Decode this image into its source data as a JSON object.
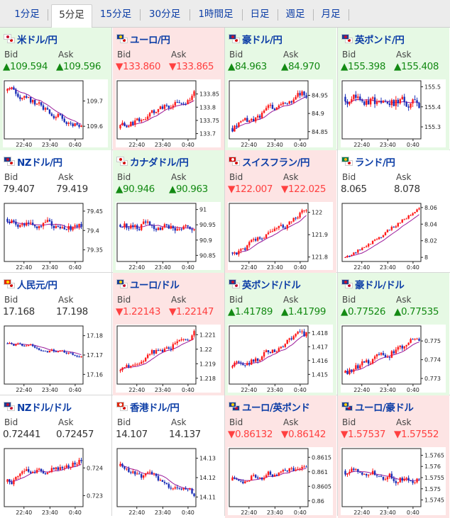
{
  "tabs": [
    {
      "label": "1分足",
      "active": false
    },
    {
      "label": "5分足",
      "active": true
    },
    {
      "label": "15分足",
      "active": false
    },
    {
      "label": "30分足",
      "active": false
    },
    {
      "label": "1時間足",
      "active": false
    },
    {
      "label": "日足",
      "active": false
    },
    {
      "label": "週足",
      "active": false
    },
    {
      "label": "月足",
      "active": false
    }
  ],
  "labels": {
    "bid": "Bid",
    "ask": "Ask"
  },
  "colors": {
    "up_bg": "#e6f9e4",
    "down_bg": "#fde4e4",
    "up_text": "#138a13",
    "down_text": "#ff4040",
    "candle_up": "#ff1a1a",
    "candle_down": "#1a2fb8",
    "ma_line": "#9a1a9a",
    "title": "#0d3ea6"
  },
  "pairs": [
    {
      "name": "米ドル/円",
      "trend": "up",
      "bid": "▲109.594",
      "ask": "▲109.596",
      "flags": [
        "us",
        "jp"
      ],
      "chart_data": {
        "type": "candlestick",
        "x_ticks": [
          "22:40",
          "23:40",
          "0:40"
        ],
        "y_ticks": [
          "109.7",
          "109.6"
        ],
        "ylim": [
          109.55,
          109.78
        ],
        "open": 109.74,
        "close": 109.59,
        "volatility": 0.012,
        "seed": 11
      }
    },
    {
      "name": "ユーロ/円",
      "trend": "down",
      "bid": "▼133.860",
      "ask": "▼133.865",
      "flags": [
        "eu",
        "jp"
      ],
      "chart_data": {
        "type": "candlestick",
        "x_ticks": [
          "22:40",
          "23:40",
          "0:40"
        ],
        "y_ticks": [
          "133.85",
          "133.8",
          "133.75",
          "133.7"
        ],
        "ylim": [
          133.68,
          133.9
        ],
        "open": 133.72,
        "close": 133.86,
        "volatility": 0.012,
        "seed": 12
      }
    },
    {
      "name": "豪ドル/円",
      "trend": "up",
      "bid": "▲84.963",
      "ask": "▲84.970",
      "flags": [
        "au",
        "jp"
      ],
      "chart_data": {
        "type": "candlestick",
        "x_ticks": [
          "22:40",
          "23:40",
          "0:40"
        ],
        "y_ticks": [
          "84.95",
          "84.9",
          "84.85"
        ],
        "ylim": [
          84.83,
          84.99
        ],
        "open": 84.86,
        "close": 84.96,
        "volatility": 0.01,
        "seed": 13
      }
    },
    {
      "name": "英ポンド/円",
      "trend": "up",
      "bid": "▲155.398",
      "ask": "▲155.408",
      "flags": [
        "gb",
        "jp"
      ],
      "chart_data": {
        "type": "candlestick",
        "x_ticks": [
          "22:40",
          "23:40",
          "0:40"
        ],
        "y_ticks": [
          "155.5",
          "155.4",
          "155.3"
        ],
        "ylim": [
          155.24,
          155.53
        ],
        "open": 155.45,
        "close": 155.4,
        "volatility": 0.025,
        "seed": 14
      }
    },
    {
      "name": "NZドル/円",
      "trend": "flat",
      "bid": "79.407",
      "ask": "79.419",
      "flags": [
        "nz",
        "jp"
      ],
      "chart_data": {
        "type": "candlestick",
        "x_ticks": [
          "22:40",
          "23:40",
          "0:40"
        ],
        "y_ticks": [
          "79.45",
          "79.4",
          "79.35"
        ],
        "ylim": [
          79.32,
          79.47
        ],
        "open": 79.43,
        "close": 79.41,
        "volatility": 0.01,
        "seed": 15
      }
    },
    {
      "name": "カナダドル/円",
      "trend": "up",
      "bid": "▲90.946",
      "ask": "▲90.963",
      "flags": [
        "ca",
        "jp"
      ],
      "chart_data": {
        "type": "candlestick",
        "x_ticks": [
          "22:40",
          "23:40",
          "0:40"
        ],
        "y_ticks": [
          "91",
          "90.95",
          "90.9",
          "90.85"
        ],
        "ylim": [
          90.83,
          91.02
        ],
        "open": 90.95,
        "close": 90.95,
        "volatility": 0.012,
        "seed": 16
      }
    },
    {
      "name": "スイスフラン/円",
      "trend": "down",
      "bid": "▼122.007",
      "ask": "▼122.025",
      "flags": [
        "ch",
        "jp"
      ],
      "chart_data": {
        "type": "candlestick",
        "x_ticks": [
          "22:40",
          "23:40",
          "0:40"
        ],
        "y_ticks": [
          "122",
          "121.9",
          "121.8"
        ],
        "ylim": [
          121.78,
          122.04
        ],
        "open": 121.82,
        "close": 122.01,
        "volatility": 0.014,
        "seed": 17
      }
    },
    {
      "name": "ランド/円",
      "trend": "flat",
      "bid": "8.065",
      "ask": "8.078",
      "flags": [
        "za",
        "jp"
      ],
      "chart_data": {
        "type": "candlestick",
        "x_ticks": [
          "22:40",
          "23:40",
          "0:40"
        ],
        "y_ticks": [
          "8.06",
          "8.04",
          "8.02",
          "8"
        ],
        "ylim": [
          7.995,
          8.065
        ],
        "open": 8.0,
        "close": 8.06,
        "volatility": 0.002,
        "seed": 18
      }
    },
    {
      "name": "人民元/円",
      "trend": "flat",
      "bid": "17.168",
      "ask": "17.198",
      "flags": [
        "cn",
        "jp"
      ],
      "chart_data": {
        "type": "candlestick",
        "x_ticks": [
          "22:40",
          "23:40",
          "0:40"
        ],
        "y_ticks": [
          "17.18",
          "17.17",
          "17.16"
        ],
        "ylim": [
          17.155,
          17.185
        ],
        "open": 17.176,
        "close": 17.169,
        "volatility": 0.0008,
        "seed": 19
      }
    },
    {
      "name": "ユーロ/ドル",
      "trend": "down",
      "bid": "▼1.22143",
      "ask": "▼1.22147",
      "flags": [
        "eu",
        "us"
      ],
      "chart_data": {
        "type": "candlestick",
        "x_ticks": [
          "22:40",
          "23:40",
          "0:40"
        ],
        "y_ticks": [
          "1.221",
          "1.22",
          "1.219",
          "1.218"
        ],
        "ylim": [
          1.2176,
          1.2216
        ],
        "open": 1.2185,
        "close": 1.2214,
        "volatility": 0.0002,
        "seed": 20
      }
    },
    {
      "name": "英ポンド/ドル",
      "trend": "up",
      "bid": "▲1.41789",
      "ask": "▲1.41799",
      "flags": [
        "gb",
        "us"
      ],
      "chart_data": {
        "type": "candlestick",
        "x_ticks": [
          "22:40",
          "23:40",
          "0:40"
        ],
        "y_ticks": [
          "1.418",
          "1.417",
          "1.416",
          "1.415"
        ],
        "ylim": [
          1.4143,
          1.4185
        ],
        "open": 1.4155,
        "close": 1.4179,
        "volatility": 0.00025,
        "seed": 21
      }
    },
    {
      "name": "豪ドル/ドル",
      "trend": "up",
      "bid": "▲0.77526",
      "ask": "▲0.77535",
      "flags": [
        "au",
        "us"
      ],
      "chart_data": {
        "type": "candlestick",
        "x_ticks": [
          "22:40",
          "23:40",
          "0:40"
        ],
        "y_ticks": [
          "0.775",
          "0.774",
          "0.773"
        ],
        "ylim": [
          0.7727,
          0.7758
        ],
        "open": 0.7733,
        "close": 0.7753,
        "volatility": 0.00018,
        "seed": 22
      }
    },
    {
      "name": "NZドル/ドル",
      "trend": "flat",
      "bid": "0.72441",
      "ask": "0.72457",
      "flags": [
        "nz",
        "us"
      ],
      "chart_data": {
        "type": "candlestick",
        "x_ticks": [
          "22:40",
          "23:40",
          "0:40"
        ],
        "y_ticks": [
          "0.724",
          "0.723"
        ],
        "ylim": [
          0.7226,
          0.7247
        ],
        "open": 0.7235,
        "close": 0.7244,
        "volatility": 0.00012,
        "seed": 23
      }
    },
    {
      "name": "香港ドル/円",
      "trend": "flat",
      "bid": "14.107",
      "ask": "14.137",
      "flags": [
        "hk",
        "jp"
      ],
      "chart_data": {
        "type": "candlestick",
        "x_ticks": [
          "22:40",
          "23:40",
          "0:40"
        ],
        "y_ticks": [
          "14.13",
          "14.12",
          "14.11"
        ],
        "ylim": [
          14.105,
          14.135
        ],
        "open": 14.126,
        "close": 14.11,
        "volatility": 0.0015,
        "seed": 24
      }
    },
    {
      "name": "ユーロ/英ポンド",
      "trend": "down",
      "bid": "▼0.86132",
      "ask": "▼0.86142",
      "flags": [
        "eu",
        "gb"
      ],
      "chart_data": {
        "type": "candlestick",
        "x_ticks": [
          "22:40",
          "23:40",
          "0:40"
        ],
        "y_ticks": [
          "0.8615",
          "0.861",
          "0.8605",
          "0.86"
        ],
        "ylim": [
          0.8598,
          0.8618
        ],
        "open": 0.8607,
        "close": 0.8612,
        "volatility": 0.0001,
        "seed": 25
      }
    },
    {
      "name": "ユーロ/豪ドル",
      "trend": "down",
      "bid": "▼1.57537",
      "ask": "▼1.57552",
      "flags": [
        "eu",
        "au"
      ],
      "chart_data": {
        "type": "candlestick",
        "x_ticks": [
          "22:40",
          "23:40",
          "0:40"
        ],
        "y_ticks": [
          "1.5765",
          "1.576",
          "1.5755",
          "1.575",
          "1.5745"
        ],
        "ylim": [
          1.5742,
          1.5768
        ],
        "open": 1.5758,
        "close": 1.5754,
        "volatility": 0.00015,
        "seed": 26
      }
    }
  ]
}
